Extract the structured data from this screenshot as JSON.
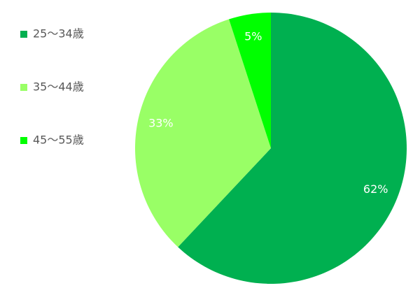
{
  "chart_data": {
    "type": "pie",
    "categories": [
      "25〜34歳",
      "35〜44歳",
      "45〜55歳"
    ],
    "values": [
      62,
      33,
      5
    ],
    "value_labels": [
      "62%",
      "33%",
      "5%"
    ],
    "colors": [
      "#00b050",
      "#99ff66",
      "#00ff00"
    ],
    "legend": "left"
  }
}
